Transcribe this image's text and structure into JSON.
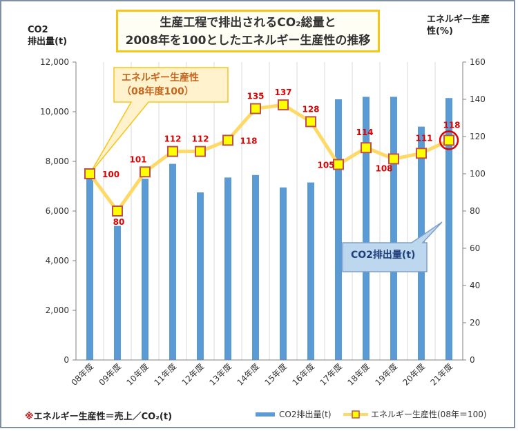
{
  "title_line1": "生産工程で排出されるCO₂総量と",
  "title_line2": "2008年を100としたエネルギー生産性の推移",
  "left_axis_label_line1": "CO2",
  "left_axis_label_line2": "排出量(t)",
  "right_axis_label_line1": "エネルギー生産",
  "right_axis_label_line2": "性(%)",
  "callout_line1": "エネルギー生産性",
  "callout_line2": "（08年度100）",
  "co2_callout": "CO2排出量(t)",
  "footer_mark": "※",
  "footer_text": "エネルギー生産性＝売上／CO₂(t)",
  "legend": {
    "bar_label": "CO2排出量(t)",
    "line_label": "エネルギー生産性(08年＝100)"
  },
  "colors": {
    "bar": "#5b9bd5",
    "line": "#ffd966",
    "marker_fill": "#ffff00",
    "marker_stroke": "#c0504d",
    "data_label": "#e00000",
    "highlight_circle": "#e00000",
    "title_border": "#f5c518"
  },
  "chart_data": {
    "type": "bar",
    "categories": [
      "08年度",
      "09年度",
      "10年度",
      "11年度",
      "12年度",
      "13年度",
      "14年度",
      "15年度",
      "16年度",
      "17年度",
      "18年度",
      "19年度",
      "20年度",
      "21年度"
    ],
    "series": [
      {
        "name": "CO2排出量(t)",
        "type": "bar",
        "axis": "left",
        "values": [
          7600,
          5400,
          7300,
          7900,
          6750,
          7350,
          7450,
          6950,
          7150,
          10500,
          10600,
          10600,
          9400,
          10550
        ]
      },
      {
        "name": "エネルギー生産性(08年＝100)",
        "type": "line",
        "axis": "right",
        "values": [
          100,
          80,
          101,
          112,
          112,
          118,
          135,
          137,
          128,
          105,
          114,
          108,
          111,
          118
        ]
      }
    ],
    "y_left": {
      "ylim": [
        0,
        12000
      ],
      "ticks": [
        "0",
        "2,000",
        "4,000",
        "6,000",
        "8,000",
        "10,000",
        "12,000"
      ]
    },
    "y_right": {
      "ylim": [
        0,
        160
      ],
      "ticks": [
        "0",
        "20",
        "40",
        "60",
        "80",
        "100",
        "120",
        "140",
        "160"
      ]
    },
    "grid": "vertical",
    "legend_position": "bottom-right",
    "highlight_index": 13
  }
}
